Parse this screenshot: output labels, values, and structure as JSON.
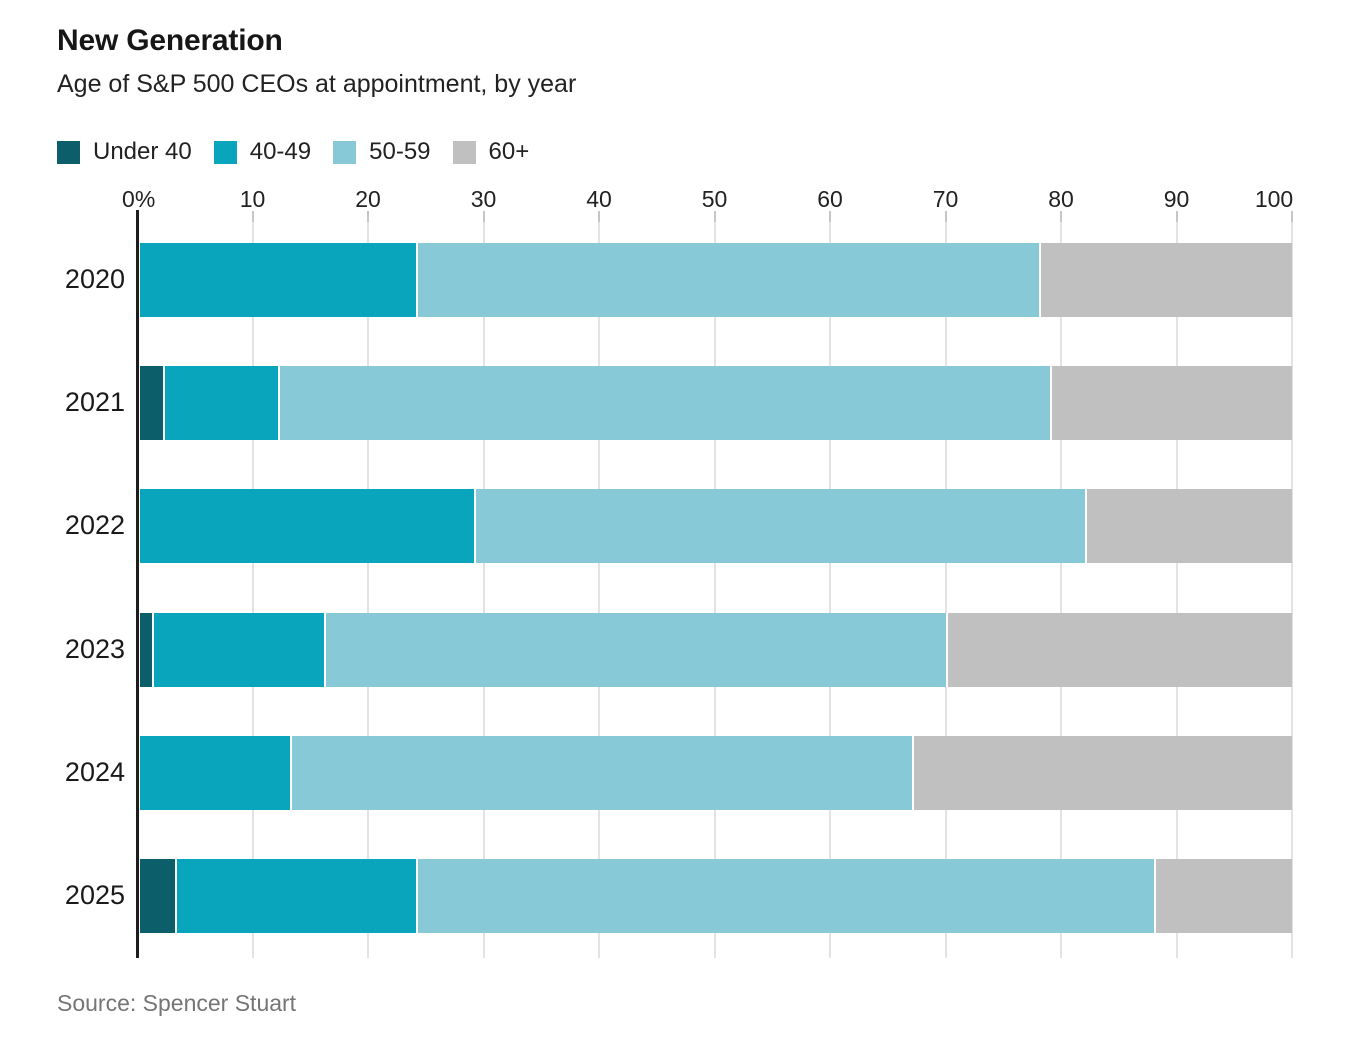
{
  "header": {
    "title": "New Generation",
    "subtitle": "Age of S&P 500 CEOs at appointment, by year"
  },
  "source": "Source: Spencer Stuart",
  "colors": {
    "under40": "#0b5e6a",
    "age40_49": "#09a5bc",
    "age50_59": "#87c9d6",
    "age60plus": "#c0c0c0",
    "gridline": "#e3e3e3",
    "axis": "#1d1d1d"
  },
  "chart_data": {
    "type": "bar",
    "orientation": "horizontal-stacked",
    "title": "New Generation",
    "subtitle": "Age of S&P 500 CEOs at appointment, by year",
    "categories": [
      "2020",
      "2021",
      "2022",
      "2023",
      "2024",
      "2025"
    ],
    "series": [
      {
        "name": "Under 40",
        "color": "#0b5e6a",
        "values": [
          0,
          2,
          0,
          1,
          0,
          3
        ]
      },
      {
        "name": "40-49",
        "color": "#09a5bc",
        "values": [
          24,
          10,
          29,
          15,
          13,
          21
        ]
      },
      {
        "name": "50-59",
        "color": "#87c9d6",
        "values": [
          54,
          67,
          53,
          54,
          54,
          64
        ]
      },
      {
        "name": "60+",
        "color": "#c0c0c0",
        "values": [
          22,
          21,
          18,
          30,
          33,
          12
        ]
      }
    ],
    "x_ticks": [
      {
        "value": 0,
        "label": "0%"
      },
      {
        "value": 10,
        "label": "10"
      },
      {
        "value": 20,
        "label": "20"
      },
      {
        "value": 30,
        "label": "30"
      },
      {
        "value": 40,
        "label": "40"
      },
      {
        "value": 50,
        "label": "50"
      },
      {
        "value": 60,
        "label": "60"
      },
      {
        "value": 70,
        "label": "70"
      },
      {
        "value": 80,
        "label": "80"
      },
      {
        "value": 90,
        "label": "90"
      },
      {
        "value": 100,
        "label": "100"
      }
    ],
    "xlim": [
      0,
      100
    ],
    "xlabel": "",
    "ylabel": "",
    "grid": true,
    "legend_position": "top-left",
    "units": "percent"
  }
}
